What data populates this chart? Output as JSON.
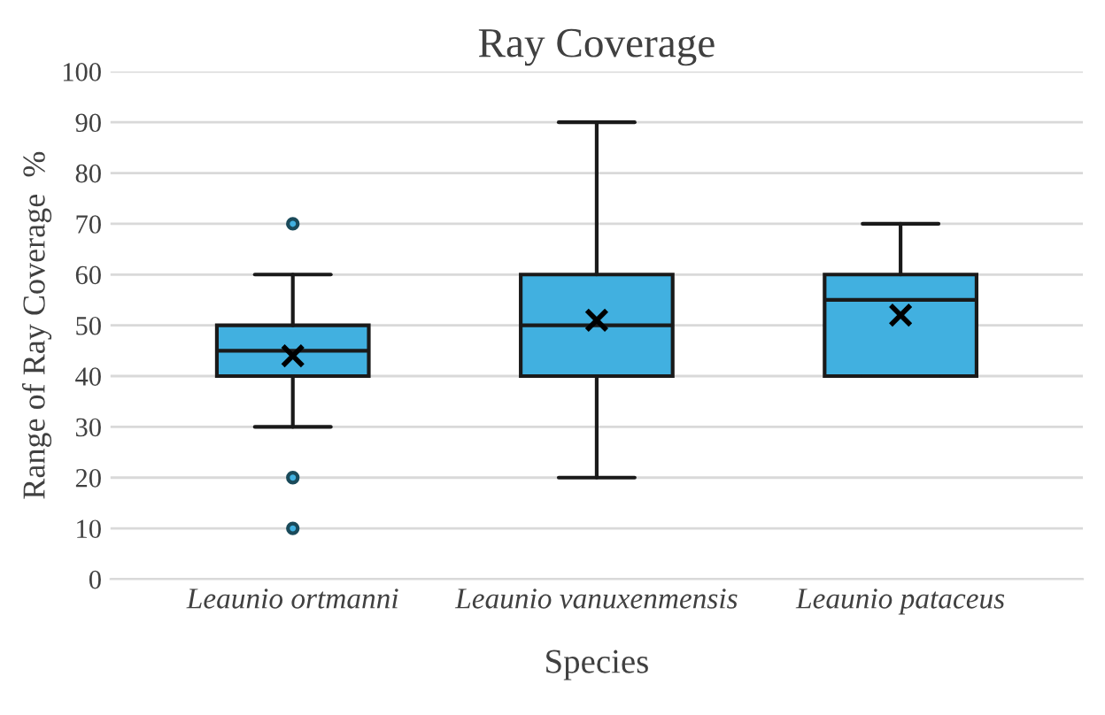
{
  "chart_data": {
    "type": "box",
    "title": "Ray Coverage",
    "xlabel": "Species",
    "ylabel": "Range of Ray Coverage  %",
    "categories": [
      "Leaunio ortmanni",
      "Leaunio vanuxenmensis",
      "Leaunio pataceus"
    ],
    "boxes": [
      {
        "low": 30,
        "q1": 40,
        "median": 45,
        "q3": 50,
        "high": 60,
        "mean": 44,
        "outliers": [
          70,
          20,
          10
        ]
      },
      {
        "low": 20,
        "q1": 40,
        "median": 50,
        "q3": 60,
        "high": 90,
        "mean": 51
      },
      {
        "low": 40,
        "q1": 40,
        "median": 55,
        "q3": 60,
        "high": 70,
        "mean": 52
      }
    ],
    "color": "#41b0e0",
    "ylim": [
      0,
      100
    ],
    "yticks": [
      0,
      10,
      20,
      30,
      40,
      50,
      60,
      70,
      80,
      90,
      100
    ],
    "grid": "y",
    "legend": false
  }
}
